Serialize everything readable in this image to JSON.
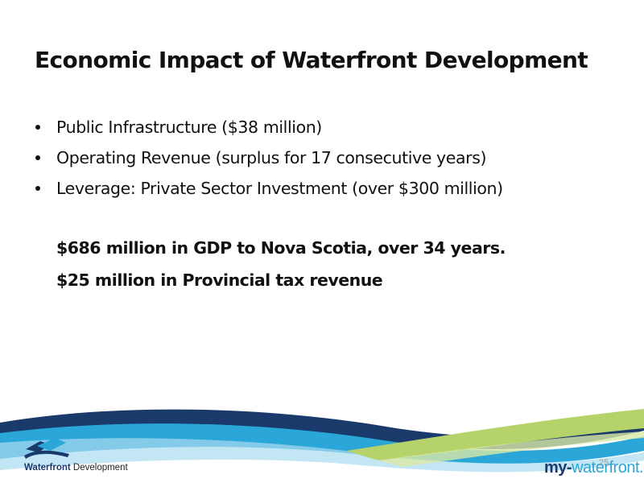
{
  "slide": {
    "title": "Economic Impact of Waterfront Development",
    "bullets": [
      "Public Infrastructure ($38 million)",
      "Operating Revenue (surplus for 17 consecutive years)",
      "Leverage: Private Sector Investment (over $300 million)"
    ],
    "highlights": [
      "$686 million in GDP to Nova Scotia, over 34 years.",
      "$25 million in Provincial tax revenue"
    ],
    "page_number": "25"
  },
  "footer": {
    "logo_word1": "Waterfront",
    "logo_word2": " Development",
    "website_part1": "my-",
    "website_part2": "waterfront.ca"
  },
  "colors": {
    "wave_navy": "#1a3a6b",
    "wave_blue": "#2aa6d8",
    "wave_green": "#b5d36a",
    "text": "#111111"
  }
}
